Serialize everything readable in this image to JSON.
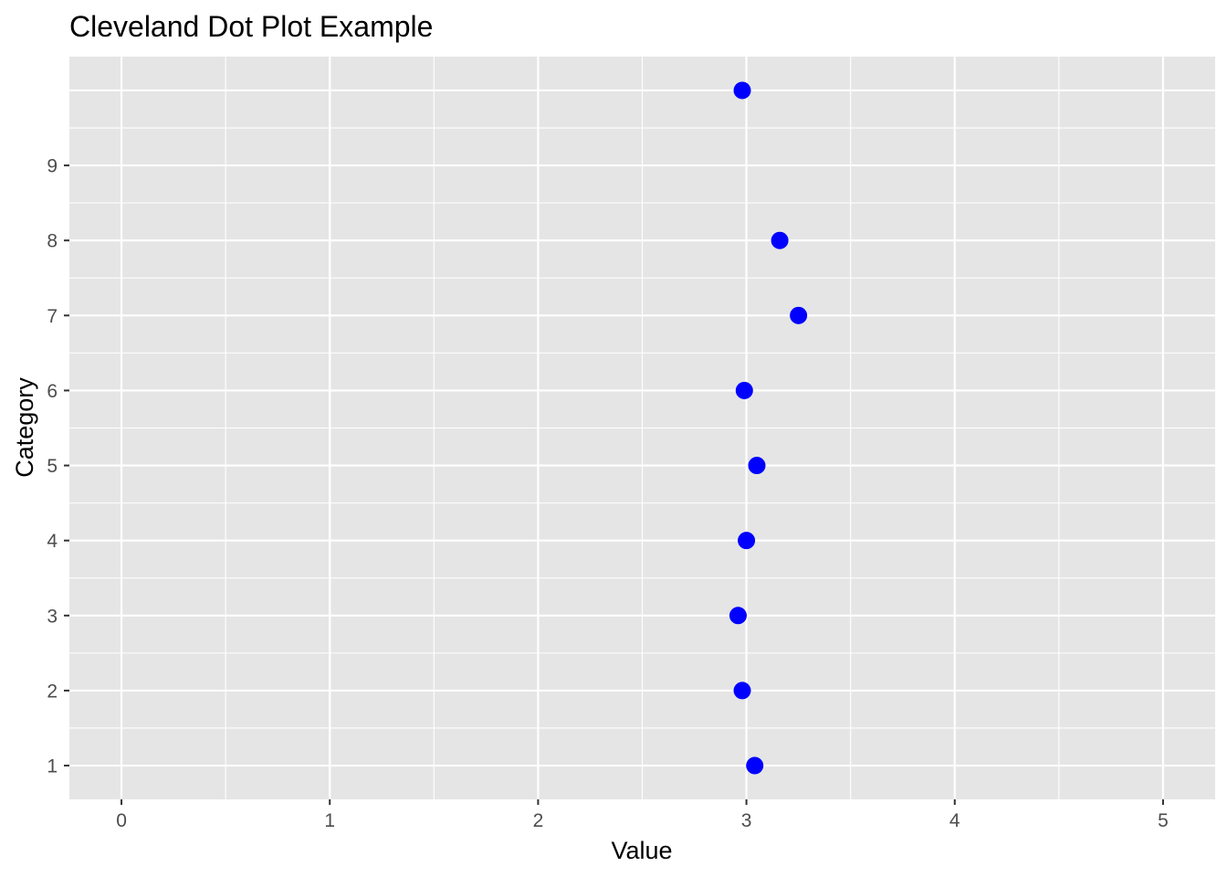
{
  "chart_data": {
    "type": "scatter",
    "title": "Cleveland Dot Plot Example",
    "xlabel": "Value",
    "ylabel": "Category",
    "xlim": [
      -0.25,
      5.25
    ],
    "ylim": [
      0.55,
      10.45
    ],
    "x_ticks": [
      0,
      1,
      2,
      3,
      4,
      5
    ],
    "y_ticks": [
      1,
      2,
      3,
      4,
      5,
      6,
      7,
      8,
      9
    ],
    "grid": true,
    "legend": "none",
    "colors": {
      "panel": "#e5e5e5",
      "grid": "#ffffff",
      "point": "#0000ff",
      "tick_text": "#4d4d4d"
    },
    "points": [
      {
        "category": 1,
        "value": 3.04
      },
      {
        "category": 2,
        "value": 2.98
      },
      {
        "category": 3,
        "value": 2.96
      },
      {
        "category": 4,
        "value": 3.0
      },
      {
        "category": 5,
        "value": 3.05
      },
      {
        "category": 6,
        "value": 2.99
      },
      {
        "category": 7,
        "value": 3.25
      },
      {
        "category": 8,
        "value": 3.16
      },
      {
        "category": 10,
        "value": 2.98
      }
    ]
  }
}
